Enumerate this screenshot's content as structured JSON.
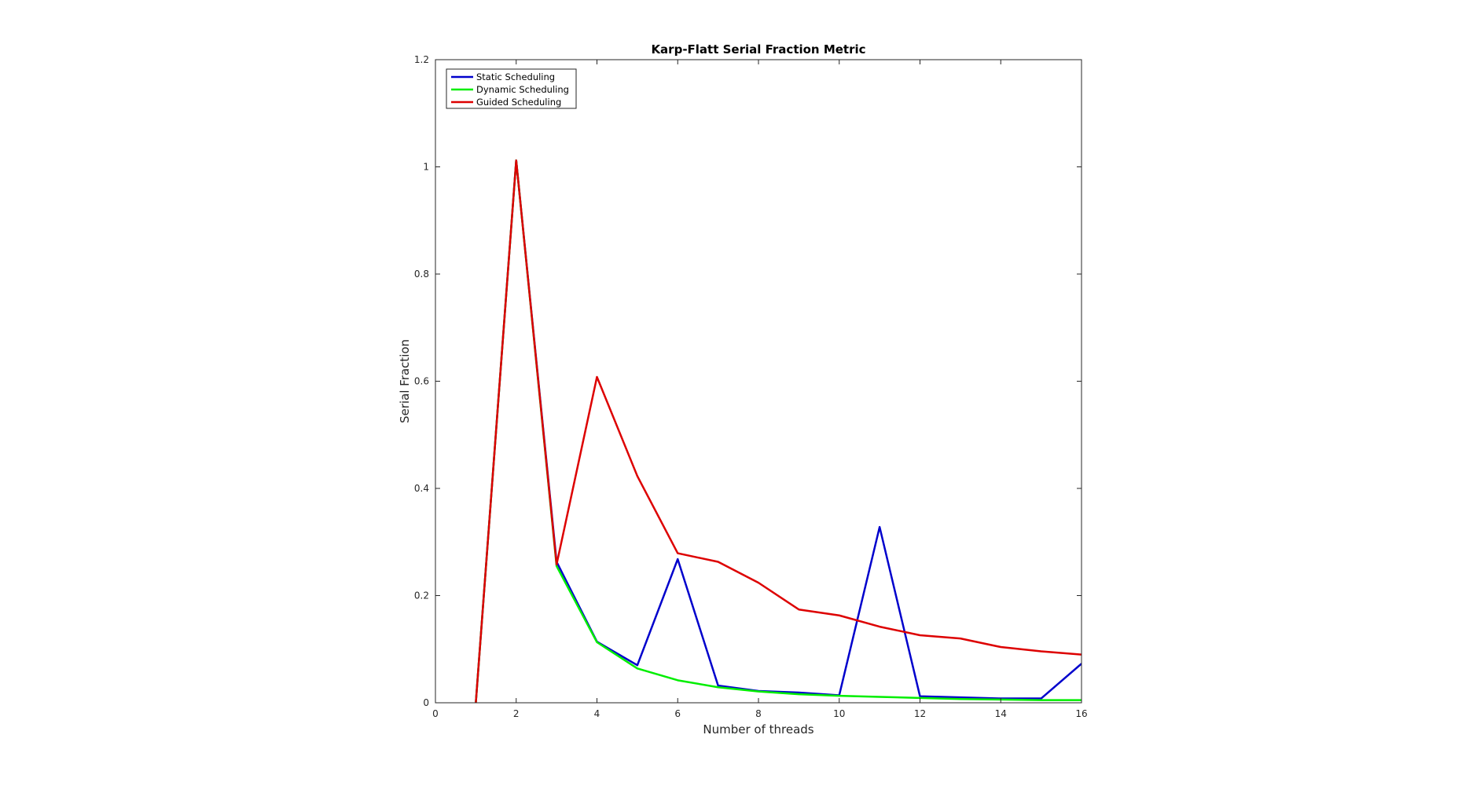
{
  "chart_data": {
    "type": "line",
    "title": "Karp-Flatt Serial Fraction Metric",
    "xlabel": "Number of threads",
    "ylabel": "Serial Fraction",
    "xlim": [
      0,
      16
    ],
    "ylim": [
      0,
      1.2
    ],
    "xticks": [
      0,
      2,
      4,
      6,
      8,
      10,
      12,
      14,
      16
    ],
    "yticks": [
      0,
      0.2,
      0.4,
      0.6,
      0.8,
      1,
      1.2
    ],
    "xtick_labels": [
      "0",
      "2",
      "4",
      "6",
      "8",
      "10",
      "12",
      "14",
      "16"
    ],
    "ytick_labels": [
      "0",
      "0.2",
      "0.4",
      "0.6",
      "0.8",
      "1",
      "1.2"
    ],
    "grid": false,
    "legend_position": "top-left",
    "x": [
      1,
      2,
      3,
      4,
      5,
      6,
      7,
      8,
      9,
      10,
      11,
      12,
      13,
      14,
      15,
      16
    ],
    "series": [
      {
        "name": "Static Scheduling",
        "color": "#0000cc",
        "values": [
          0,
          1.012,
          0.263,
          0.114,
          0.07,
          0.268,
          0.032,
          0.022,
          0.019,
          0.014,
          0.328,
          0.012,
          0.01,
          0.008,
          0.008,
          0.073
        ]
      },
      {
        "name": "Dynamic Scheduling",
        "color": "#00ee00",
        "values": [
          0,
          1.012,
          0.255,
          0.113,
          0.064,
          0.042,
          0.029,
          0.021,
          0.016,
          0.013,
          0.011,
          0.009,
          0.007,
          0.006,
          0.005,
          0.005
        ]
      },
      {
        "name": "Guided Scheduling",
        "color": "#dd0000",
        "values": [
          0,
          1.012,
          0.258,
          0.608,
          0.423,
          0.279,
          0.263,
          0.224,
          0.174,
          0.163,
          0.142,
          0.126,
          0.12,
          0.104,
          0.096,
          0.09
        ]
      }
    ]
  }
}
